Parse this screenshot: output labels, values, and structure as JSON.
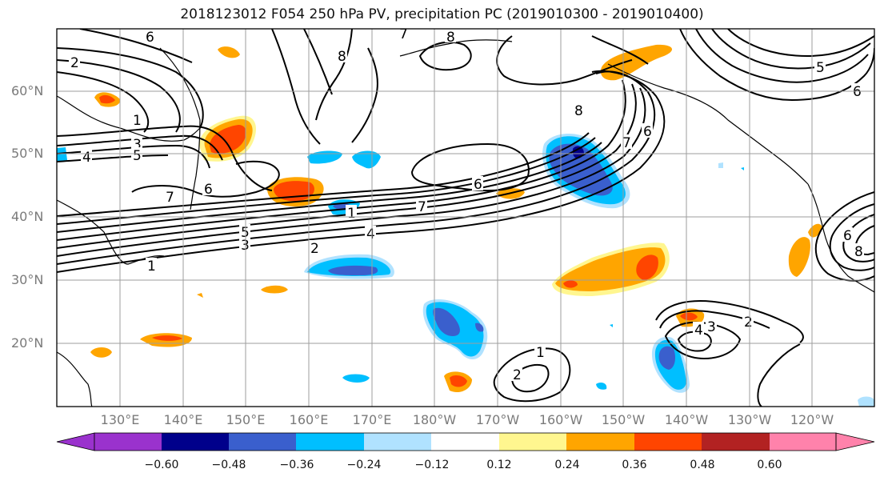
{
  "title": "2018123012 F054 250 hPa PV, precipitation PC (2019010300 - 2019010400)",
  "latitude_labels": [
    "60°N",
    "50°N",
    "40°N",
    "30°N",
    "20°N"
  ],
  "longitude_labels": [
    "130°E",
    "140°E",
    "150°E",
    "160°E",
    "170°E",
    "180°W",
    "170°W",
    "160°W",
    "150°W",
    "140°W",
    "130°W",
    "120°W"
  ],
  "colorbar": {
    "colors": [
      "#9a32cd",
      "#00008b",
      "#3a5fcd",
      "#00bfff",
      "#b0e2ff",
      "#ffffff",
      "#fff68f",
      "#ffa500",
      "#ff4500",
      "#b22222",
      "#ff82ab"
    ],
    "ticks": [
      "−0.60",
      "−0.48",
      "−0.36",
      "−0.24",
      "−0.12",
      "0.12",
      "0.24",
      "0.36",
      "0.48",
      "0.60"
    ]
  },
  "pv_contour_labels": [
    "6",
    "7",
    "8",
    "2",
    "1",
    "3",
    "4",
    "5",
    "6",
    "7",
    "4",
    "5",
    "3",
    "2",
    "1",
    "8",
    "6",
    "8",
    "7",
    "6",
    "7",
    "1",
    "2",
    "1",
    "4",
    "3",
    "2",
    "5",
    "6",
    "6",
    "8"
  ]
}
